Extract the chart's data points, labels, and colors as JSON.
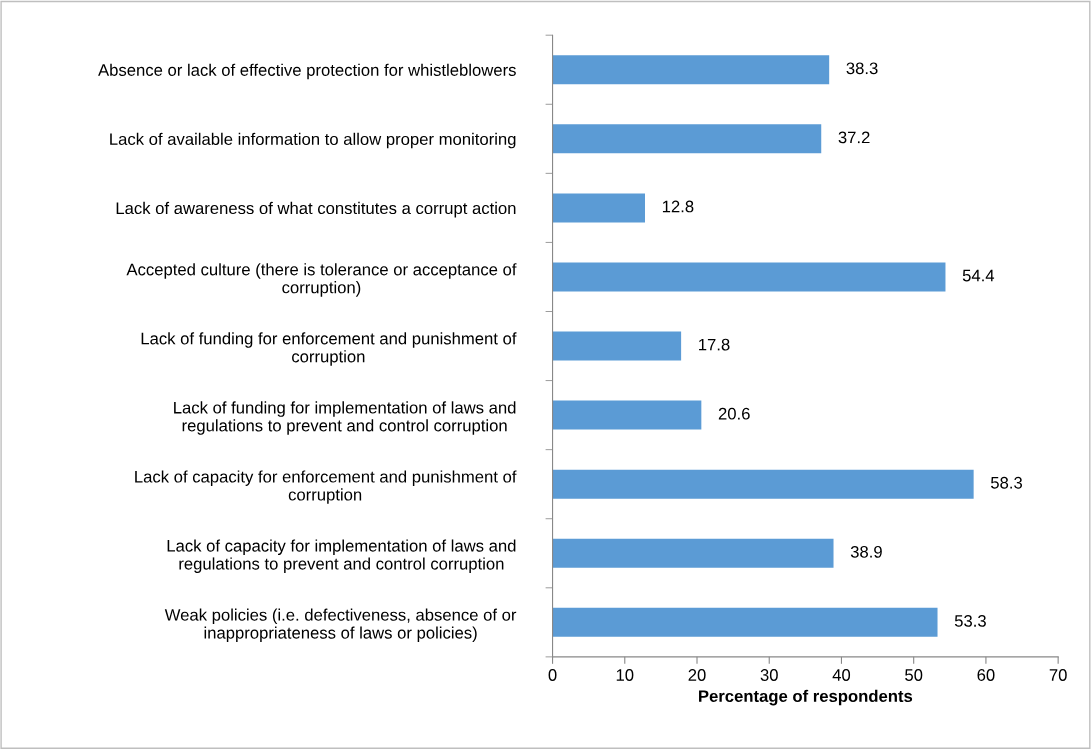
{
  "chart_data": {
    "type": "bar",
    "orientation": "horizontal",
    "xlabel": "Percentage of respondents",
    "categories": [
      "Absence or lack of effective protection for whistleblowers",
      "Lack of available information to allow proper monitoring",
      "Lack of awareness of what constitutes a corrupt action",
      "Accepted culture (there is tolerance or acceptance of\ncorruption)",
      "Lack of funding for enforcement and punishment of\ncorruption",
      "Lack of funding for implementation of laws and\nregulations to prevent and control corruption",
      "Lack of capacity for enforcement and punishment of\ncorruption",
      "Lack of capacity for implementation of laws and\nregulations to prevent and control corruption",
      "Weak policies (i.e. defectiveness, absence of or\ninappropriateness of laws or policies)"
    ],
    "values": [
      38.3,
      37.2,
      12.8,
      54.4,
      17.8,
      20.6,
      58.3,
      38.9,
      53.3
    ],
    "color": "#5b9bd5",
    "xlim": [
      0,
      70
    ],
    "xticks": [
      0,
      10,
      20,
      30,
      40,
      50,
      60,
      70
    ],
    "data_labels": true,
    "grid": false,
    "legend": false
  }
}
